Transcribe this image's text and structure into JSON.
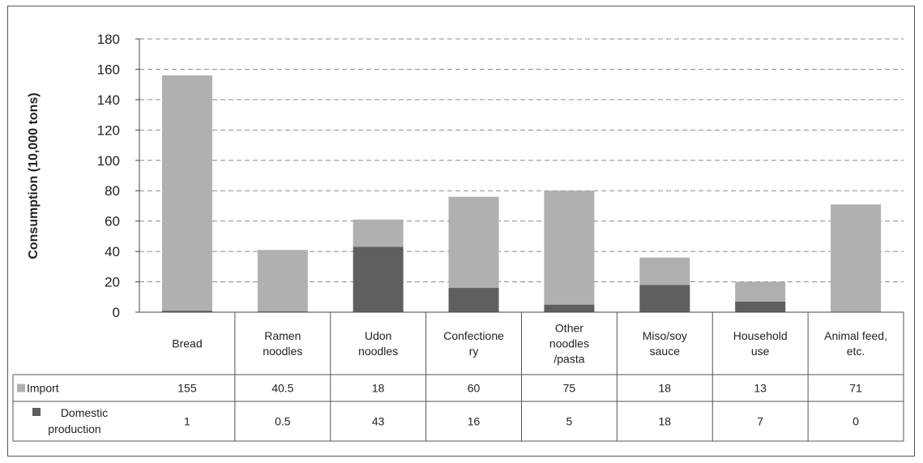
{
  "chart_data": {
    "type": "bar",
    "stacked": true,
    "ylabel": "Consumption (10,000 tons)",
    "ylim": [
      0,
      180
    ],
    "yticks": [
      0,
      20,
      40,
      60,
      80,
      100,
      120,
      140,
      160,
      180
    ],
    "grid": "horizontal dashed",
    "legend": "table-bottom-left",
    "categories": [
      [
        "Bread"
      ],
      [
        "Ramen",
        "noodles"
      ],
      [
        "Udon",
        "noodles"
      ],
      [
        "Confectione",
        "ry"
      ],
      [
        "Other",
        "noodles",
        "/pasta"
      ],
      [
        "Miso/soy",
        "sauce"
      ],
      [
        "Household",
        "use"
      ],
      [
        "Animal feed,",
        "etc."
      ]
    ],
    "series": [
      {
        "name": "Import",
        "color": "#b0b0b0",
        "values": [
          155,
          40.5,
          18,
          60,
          75,
          18,
          13,
          71
        ],
        "labels": [
          "155",
          "40.5",
          "18",
          "60",
          "75",
          "18",
          "13",
          "71"
        ]
      },
      {
        "name": "Domestic production",
        "name_lines": [
          "Domestic",
          "production"
        ],
        "color": "#5f5f5f",
        "values": [
          1,
          0.5,
          43,
          16,
          5,
          18,
          7,
          0
        ],
        "labels": [
          "1",
          "0.5",
          "43",
          "16",
          "5",
          "18",
          "7",
          "0"
        ]
      }
    ]
  }
}
